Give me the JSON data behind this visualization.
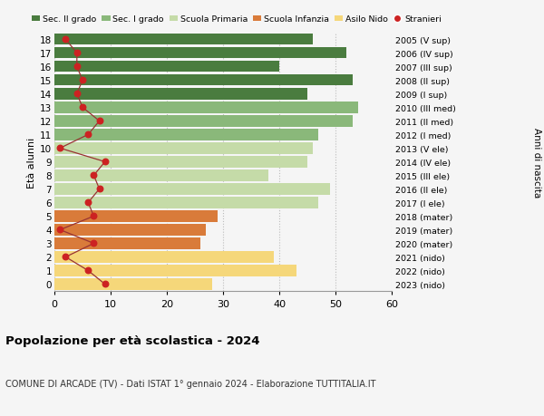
{
  "ages": [
    18,
    17,
    16,
    15,
    14,
    13,
    12,
    11,
    10,
    9,
    8,
    7,
    6,
    5,
    4,
    3,
    2,
    1,
    0
  ],
  "anni_nascita": [
    "2005 (V sup)",
    "2006 (IV sup)",
    "2007 (III sup)",
    "2008 (II sup)",
    "2009 (I sup)",
    "2010 (III med)",
    "2011 (II med)",
    "2012 (I med)",
    "2013 (V ele)",
    "2014 (IV ele)",
    "2015 (III ele)",
    "2016 (II ele)",
    "2017 (I ele)",
    "2018 (mater)",
    "2019 (mater)",
    "2020 (mater)",
    "2021 (nido)",
    "2022 (nido)",
    "2023 (nido)"
  ],
  "bar_values": [
    46,
    52,
    40,
    53,
    45,
    54,
    53,
    47,
    46,
    45,
    38,
    49,
    47,
    29,
    27,
    26,
    39,
    43,
    28
  ],
  "bar_colors": [
    "#4a7c3f",
    "#4a7c3f",
    "#4a7c3f",
    "#4a7c3f",
    "#4a7c3f",
    "#8ab87a",
    "#8ab87a",
    "#8ab87a",
    "#c5dba8",
    "#c5dba8",
    "#c5dba8",
    "#c5dba8",
    "#c5dba8",
    "#d97b3a",
    "#d97b3a",
    "#d97b3a",
    "#f5d77a",
    "#f5d77a",
    "#f5d77a"
  ],
  "stranieri": [
    2,
    4,
    4,
    5,
    4,
    5,
    8,
    6,
    1,
    9,
    7,
    8,
    6,
    7,
    1,
    7,
    2,
    6,
    9
  ],
  "legend_labels": [
    "Sec. II grado",
    "Sec. I grado",
    "Scuola Primaria",
    "Scuola Infanzia",
    "Asilo Nido",
    "Stranieri"
  ],
  "legend_colors": [
    "#4a7c3f",
    "#8ab87a",
    "#c5dba8",
    "#d97b3a",
    "#f5d77a",
    "#cc2222"
  ],
  "title": "Popolazione per età scolastica - 2024",
  "subtitle": "COMUNE DI ARCADE (TV) - Dati ISTAT 1° gennaio 2024 - Elaborazione TUTTITALIA.IT",
  "ylabel_left": "Età alunni",
  "ylabel_right": "Anni di nascita",
  "xlim": [
    0,
    60
  ],
  "background_color": "#f5f5f5",
  "stranieri_color": "#cc2222",
  "stranieri_line_color": "#993333"
}
